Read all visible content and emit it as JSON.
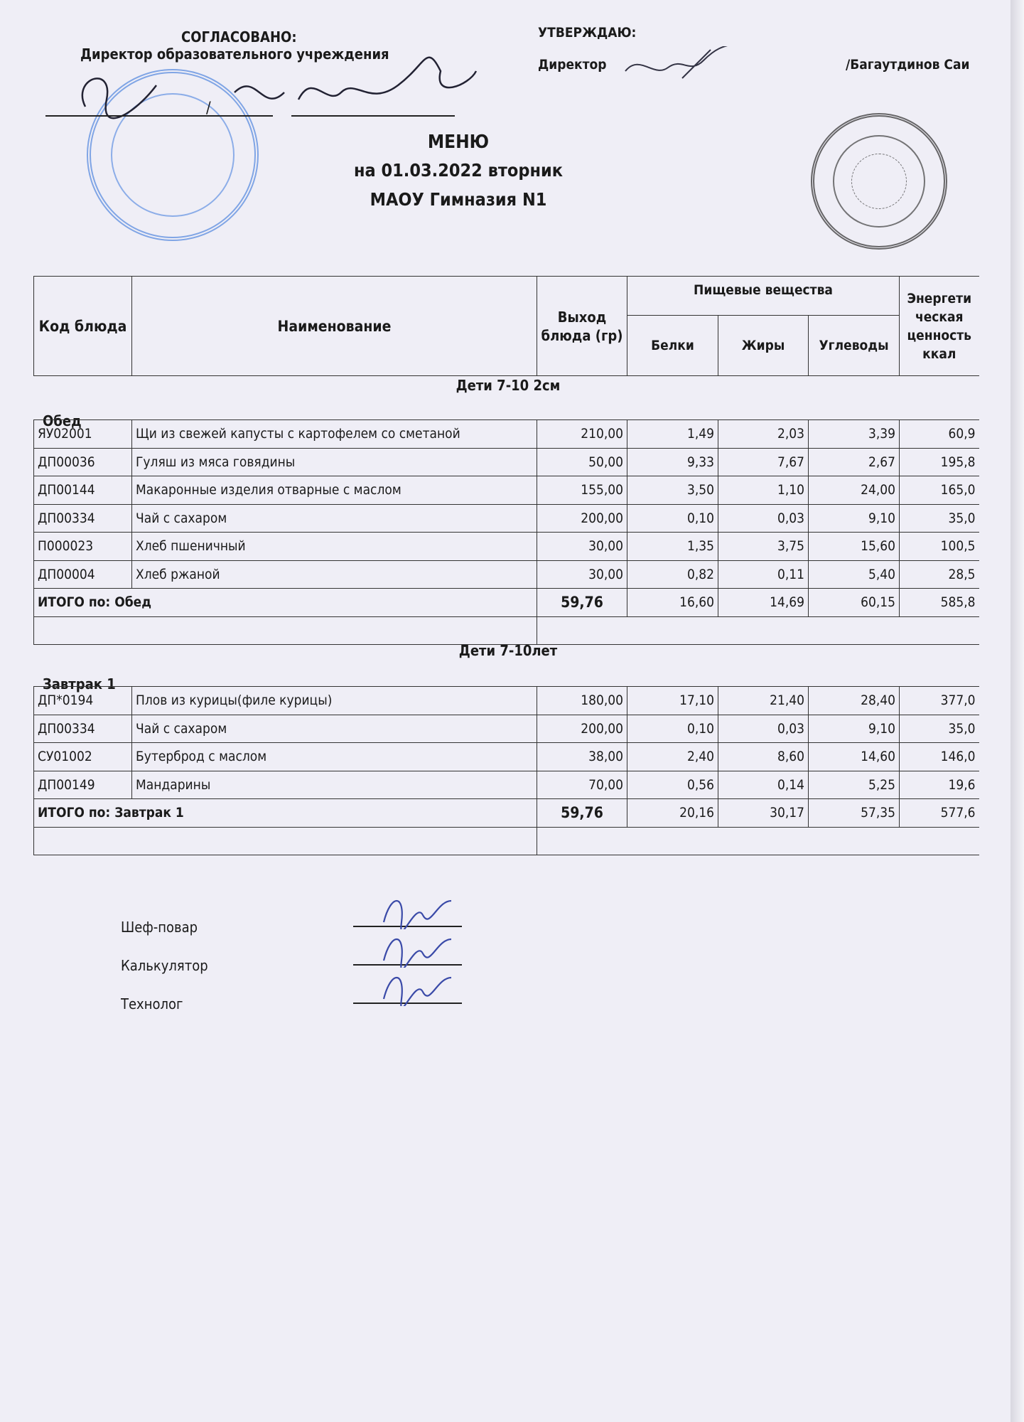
{
  "approval_left": {
    "title": "СОГЛАСОВАНО:",
    "position": "Директор образовательного учреждения",
    "separator": "/"
  },
  "approval_right": {
    "title": "УТВЕРЖДАЮ:",
    "position": "Директор",
    "name": "/Багаутдинов Саи"
  },
  "heading": {
    "title": "МЕНЮ",
    "date_line": "на 01.03.2022  вторник",
    "school": "МАОУ Гимназия N1"
  },
  "table": {
    "headers": {
      "code": "Код блюда",
      "name": "Наименование",
      "output": "Выход блюда (гр)",
      "nutrients": "Пищевые вещества",
      "proteins": "Белки",
      "fats": "Жиры",
      "carbs": "Углеводы",
      "energy": "Энергети ческая ценность ккал"
    }
  },
  "sections": [
    {
      "group": "Дети 7-10 2см",
      "meal": "Обед",
      "rows": [
        [
          "ЯУ02001",
          "Щи из свежей капусты с картофелем со сметаной",
          "210,00",
          "1,49",
          "2,03",
          "3,39",
          "60,9"
        ],
        [
          "ДП00036",
          "Гуляш из мяса говядины",
          "50,00",
          "9,33",
          "7,67",
          "2,67",
          "195,8"
        ],
        [
          "ДП00144",
          "Макаронные изделия отварные с маслом",
          "155,00",
          "3,50",
          "1,10",
          "24,00",
          "165,0"
        ],
        [
          "ДП00334",
          "Чай с сахаром",
          "200,00",
          "0,10",
          "0,03",
          "9,10",
          "35,0"
        ],
        [
          "П000023",
          "Хлеб пшеничный",
          "30,00",
          "1,35",
          "3,75",
          "15,60",
          "100,5"
        ],
        [
          "ДП00004",
          "Хлеб ржаной",
          "30,00",
          "0,82",
          "0,11",
          "5,40",
          "28,5"
        ]
      ],
      "total": [
        "ИТОГО по: Обед",
        "59,76",
        "16,60",
        "14,69",
        "60,15",
        "585,8"
      ]
    },
    {
      "group": "Дети 7-10лет",
      "meal": "Завтрак 1",
      "rows": [
        [
          "ДП*0194",
          "Плов из курицы(филе курицы)",
          "180,00",
          "17,10",
          "21,40",
          "28,40",
          "377,0"
        ],
        [
          "ДП00334",
          "Чай с сахаром",
          "200,00",
          "0,10",
          "0,03",
          "9,10",
          "35,0"
        ],
        [
          "СУ01002",
          "Бутерброд с маслом",
          "38,00",
          "2,40",
          "8,60",
          "14,60",
          "146,0"
        ],
        [
          "ДП00149",
          "Мандарины",
          "70,00",
          "0,56",
          "0,14",
          "5,25",
          "19,6"
        ]
      ],
      "total": [
        "ИТОГО по: Завтрак 1",
        "59,76",
        "20,16",
        "30,17",
        "57,35",
        "577,6"
      ]
    }
  ],
  "signatures": [
    "Шеф-повар",
    "Калькулятор",
    "Технолог"
  ],
  "colors": {
    "paper": "#efeef6",
    "stamp_blue": "#4a7fd8",
    "stamp_black": "#333333",
    "ink": "#1a1a1a"
  }
}
